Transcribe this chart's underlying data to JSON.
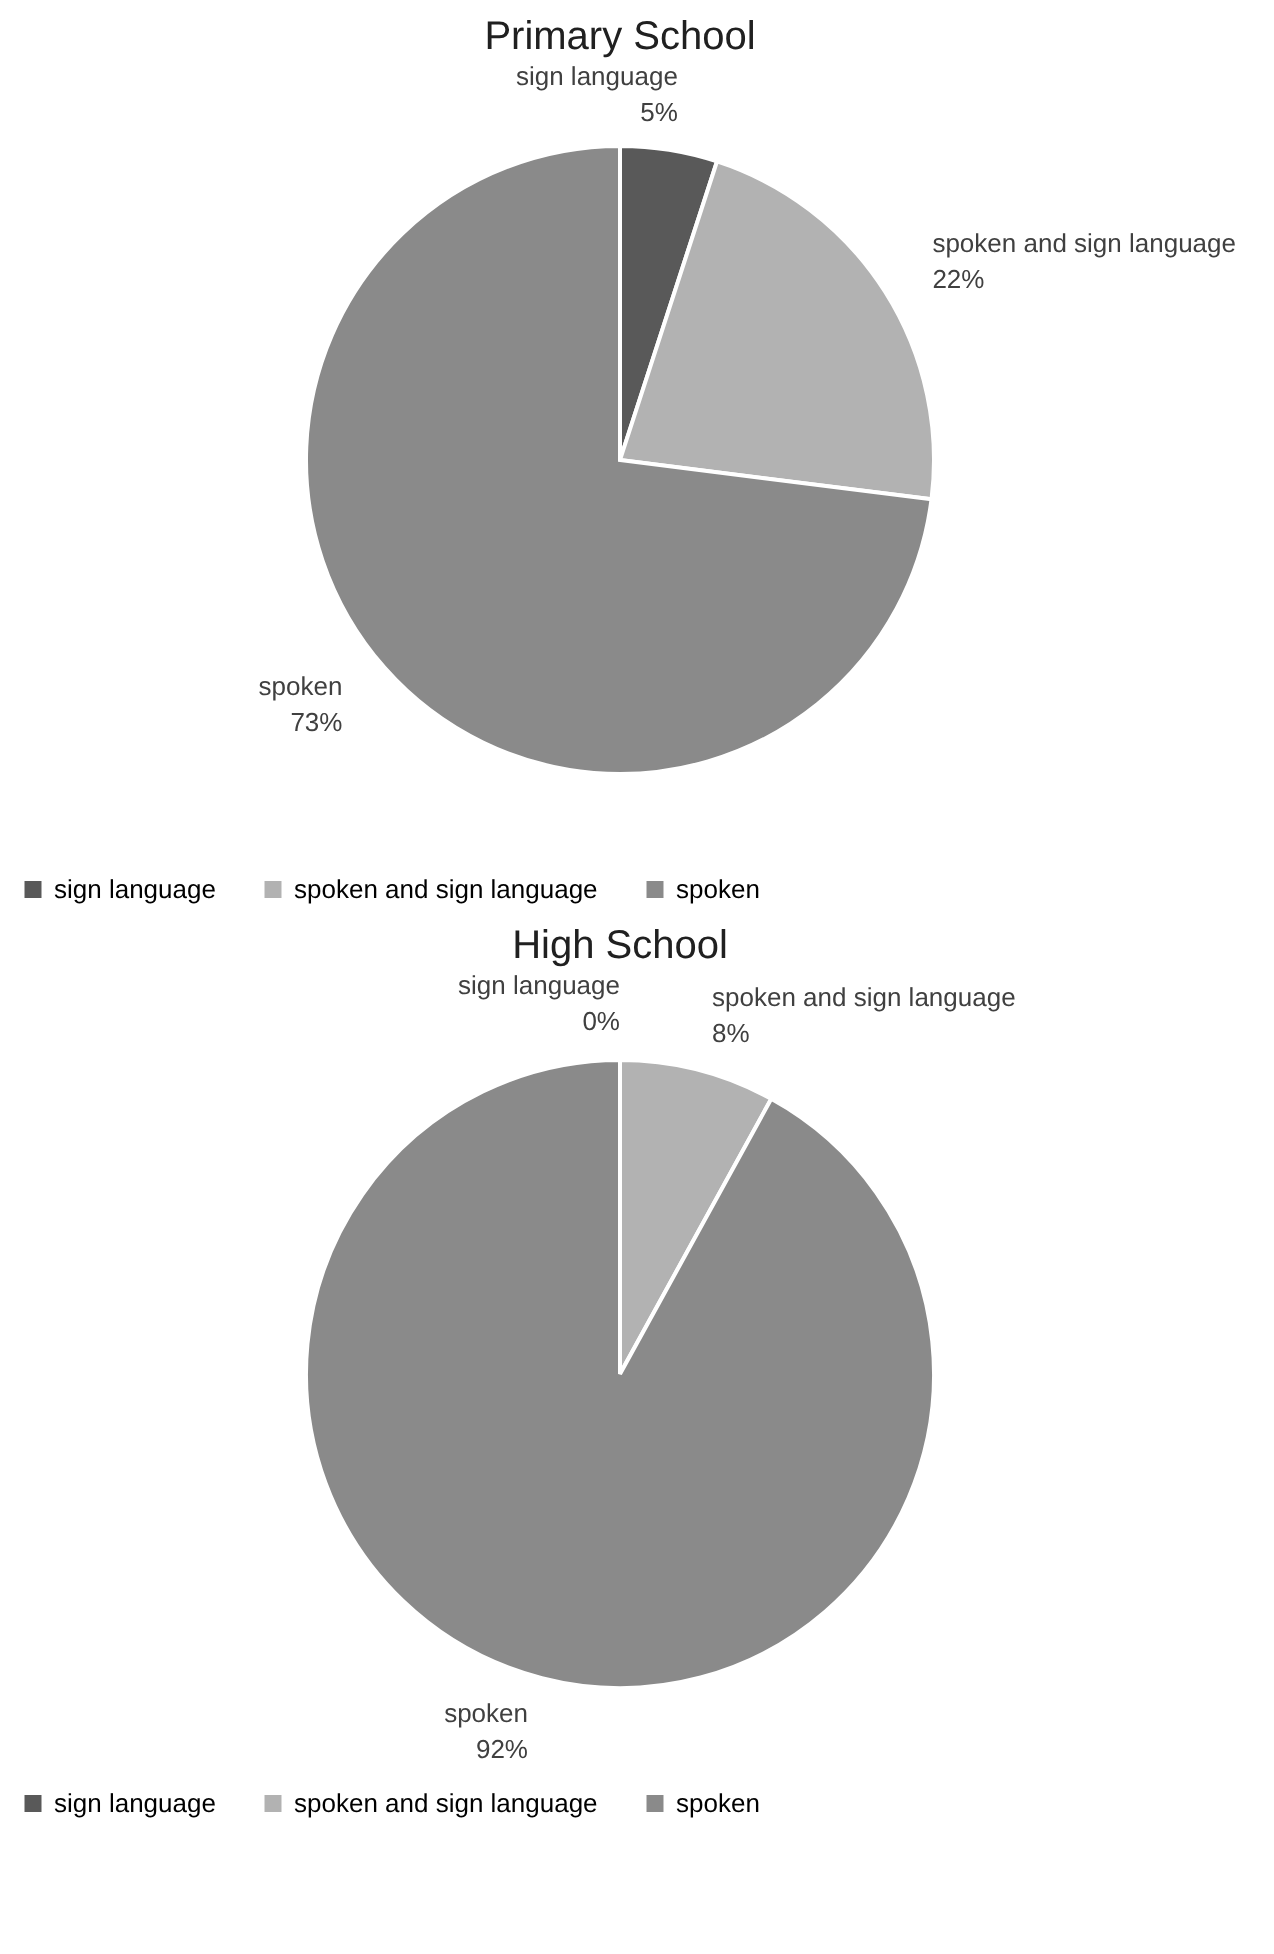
{
  "chart_data": [
    {
      "type": "pie",
      "title": "Primary School",
      "categories": [
        "sign language",
        "spoken and sign language",
        "spoken"
      ],
      "values": [
        5,
        22,
        73
      ],
      "colors": [
        "#595959",
        "#b2b2b2",
        "#8a8a8a"
      ],
      "value_labels": [
        "5%",
        "22%",
        "73%"
      ],
      "legend": "bottom"
    },
    {
      "type": "pie",
      "title": "High School",
      "categories": [
        "sign language",
        "spoken and sign language",
        "spoken"
      ],
      "values": [
        0,
        8,
        92
      ],
      "colors": [
        "#595959",
        "#b2b2b2",
        "#8a8a8a"
      ],
      "value_labels": [
        "0%",
        "8%",
        "92%"
      ],
      "legend": "bottom"
    }
  ]
}
